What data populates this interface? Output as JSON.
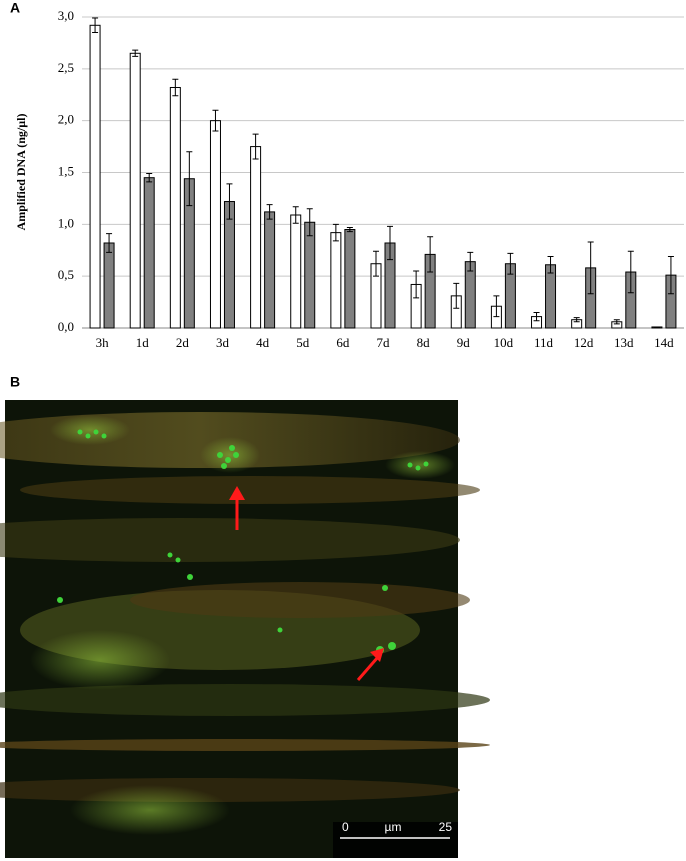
{
  "chart_data": {
    "type": "bar",
    "panel_label": "A",
    "y_label": "Amplified DNA (ng/µl)",
    "categories": [
      "3h",
      "1d",
      "2d",
      "3d",
      "4d",
      "5d",
      "6d",
      "7d",
      "8d",
      "9d",
      "10d",
      "11d",
      "12d",
      "13d",
      "14d"
    ],
    "series": [
      {
        "color": "#ffffff",
        "values": [
          2.92,
          2.65,
          2.32,
          2.0,
          1.75,
          1.09,
          0.92,
          0.62,
          0.42,
          0.31,
          0.21,
          0.11,
          0.08,
          0.06,
          0.01
        ],
        "errors": [
          0.07,
          0.03,
          0.08,
          0.1,
          0.12,
          0.08,
          0.08,
          0.12,
          0.13,
          0.12,
          0.1,
          0.04,
          0.02,
          0.02,
          0
        ]
      },
      {
        "color": "#808080",
        "values": [
          0.82,
          1.45,
          1.44,
          1.22,
          1.12,
          1.02,
          0.95,
          0.82,
          0.71,
          0.64,
          0.62,
          0.61,
          0.58,
          0.54,
          0.51
        ],
        "errors": [
          0.09,
          0.04,
          0.26,
          0.17,
          0.07,
          0.13,
          0.02,
          0.16,
          0.17,
          0.09,
          0.1,
          0.08,
          0.25,
          0.2,
          0.18
        ]
      }
    ],
    "ylim": [
      0,
      3
    ],
    "yticks": [
      {
        "value": 0,
        "label": "0,0"
      },
      {
        "value": 0.5,
        "label": "0,5"
      },
      {
        "value": 1,
        "label": "1,0"
      },
      {
        "value": 1.5,
        "label": "1,5"
      },
      {
        "value": 2,
        "label": "2,0"
      },
      {
        "value": 2.5,
        "label": "2,5"
      },
      {
        "value": 3,
        "label": "3,0"
      }
    ],
    "grid": true
  },
  "image_panel": {
    "panel_label": "B",
    "scale_bar": {
      "start": "0",
      "unit": "µm",
      "end": "25"
    }
  }
}
